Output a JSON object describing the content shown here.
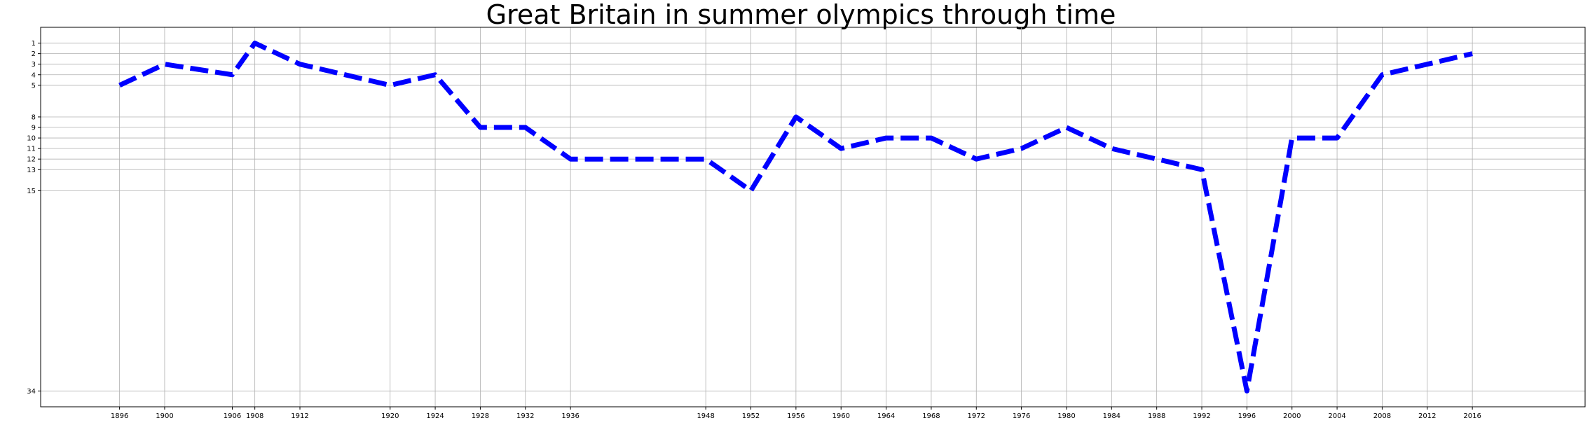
{
  "chart_data": {
    "type": "line",
    "title": "Great Britain in summer olympics through time",
    "xlabel": "",
    "ylabel": "",
    "y_inverted": true,
    "grid": true,
    "x": [
      1896,
      1900,
      1906,
      1908,
      1912,
      1920,
      1924,
      1928,
      1932,
      1936,
      1948,
      1952,
      1956,
      1960,
      1964,
      1968,
      1972,
      1976,
      1980,
      1984,
      1988,
      1992,
      1996,
      2000,
      2004,
      2008,
      2012,
      2016
    ],
    "x_tick_labels": [
      "1896",
      "1900",
      "1906",
      "1908",
      "1912",
      "1920",
      "1924",
      "1928",
      "1932",
      "1936",
      "1948",
      "1952",
      "1956",
      "1960",
      "1964",
      "1968",
      "1972",
      "1976",
      "1980",
      "1984",
      "1988",
      "1992",
      "1996",
      "2000",
      "2004",
      "2008",
      "2012",
      "2016"
    ],
    "y_ticks": [
      1,
      2,
      3,
      4,
      5,
      8,
      9,
      10,
      11,
      12,
      13,
      15,
      34
    ],
    "y_tick_labels": [
      "1",
      "2",
      "3",
      "4",
      "5",
      "8",
      "9",
      "10",
      "11",
      "12",
      "13",
      "15",
      "34"
    ],
    "series": [
      {
        "values": [
          5,
          3,
          4,
          1,
          3,
          5,
          4,
          9,
          9,
          12,
          12,
          15,
          8,
          11,
          10,
          10,
          12,
          11,
          9,
          11,
          12,
          13,
          34,
          10,
          10,
          4,
          3,
          2
        ],
        "color": "#0000ff",
        "line_style": "dashed"
      }
    ],
    "xlim": [
      1889,
      2026
    ],
    "ylim": [
      35.5,
      -0.5
    ]
  }
}
